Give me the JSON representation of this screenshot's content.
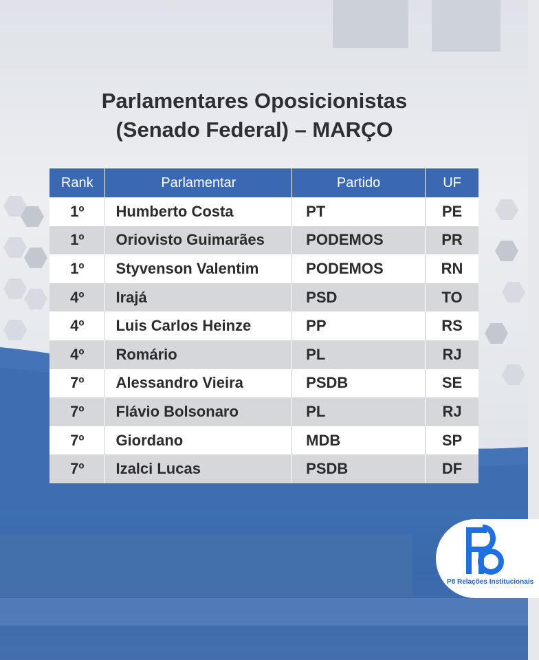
{
  "title": {
    "line1": "Parlamentares Oposicionistas",
    "line2": "(Senado Federal) – MARÇO"
  },
  "table": {
    "headers": {
      "rank": "Rank",
      "name": "Parlamentar",
      "party": "Partido",
      "uf": "UF"
    },
    "rows": [
      {
        "rank": "1º",
        "name": "Humberto Costa",
        "party": "PT",
        "uf": "PE"
      },
      {
        "rank": "1º",
        "name": "Oriovisto Guimarães",
        "party": "PODEMOS",
        "uf": "PR"
      },
      {
        "rank": "1º",
        "name": "Styvenson Valentim",
        "party": "PODEMOS",
        "uf": "RN"
      },
      {
        "rank": "4º",
        "name": "Irajá",
        "party": "PSD",
        "uf": "TO"
      },
      {
        "rank": "4º",
        "name": "Luis Carlos Heinze",
        "party": "PP",
        "uf": "RS"
      },
      {
        "rank": "4º",
        "name": "Romário",
        "party": "PL",
        "uf": "RJ"
      },
      {
        "rank": "7º",
        "name": "Alessandro Vieira",
        "party": "PSDB",
        "uf": "SE"
      },
      {
        "rank": "7º",
        "name": "Flávio Bolsonaro",
        "party": "PL",
        "uf": "RJ"
      },
      {
        "rank": "7º",
        "name": "Giordano",
        "party": "MDB",
        "uf": "SP"
      },
      {
        "rank": "7º",
        "name": "Izalci Lucas",
        "party": "PSDB",
        "uf": "DF"
      }
    ]
  },
  "logo": {
    "caption": "P8 Relações Institucionais",
    "letters": "P8",
    "color": "#1f6fe0"
  },
  "colors": {
    "header_bg": "#3a68b3",
    "stripe": "#d6d7da",
    "brand_blue": "#3d6fb3"
  }
}
